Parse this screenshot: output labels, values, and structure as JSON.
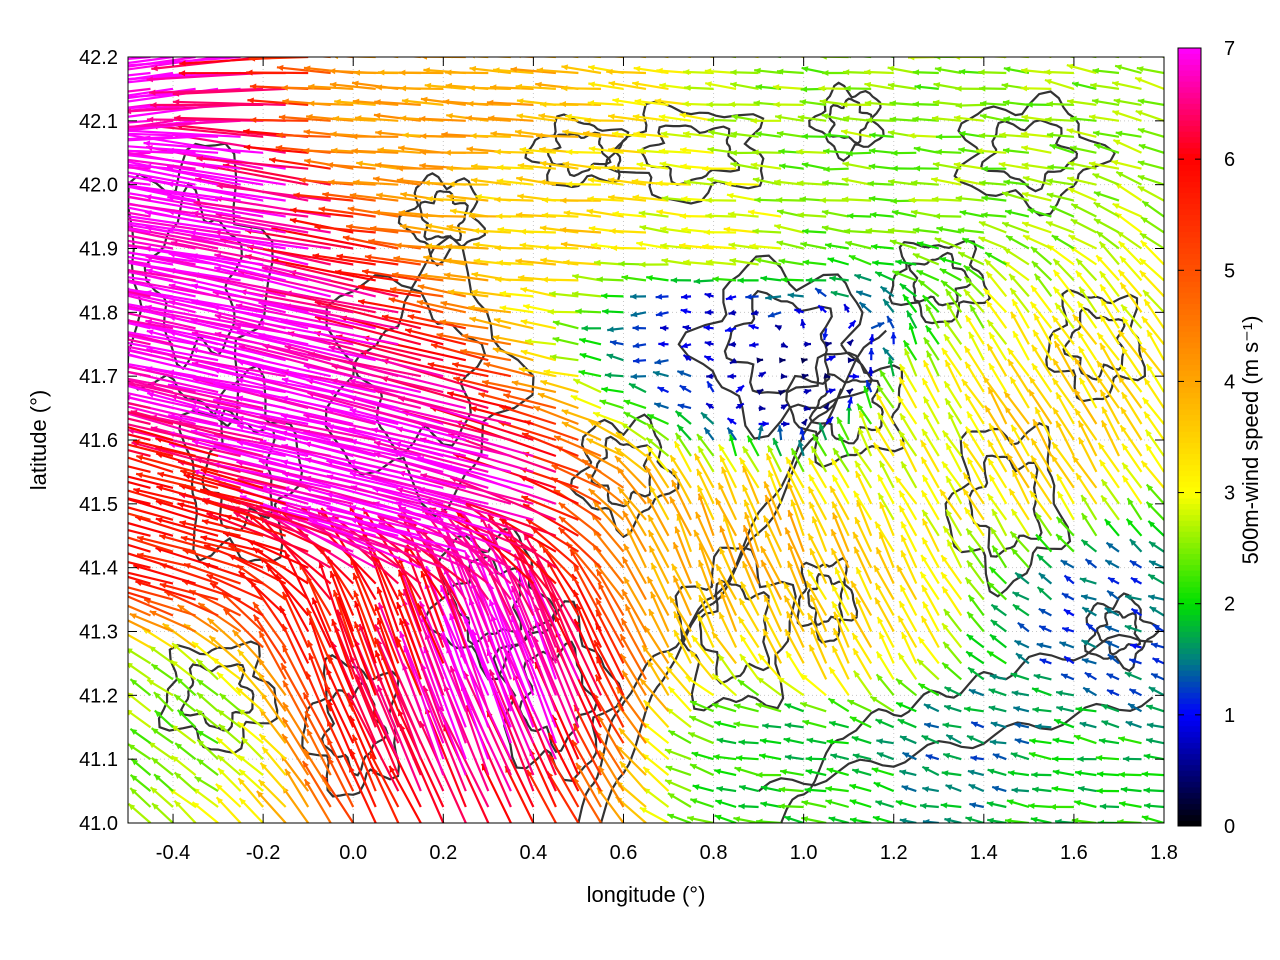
{
  "chart_data": {
    "type": "vector-field",
    "xlabel": "longitude (°)",
    "ylabel": "latitude (°)",
    "xlim": [
      -0.5,
      1.8
    ],
    "ylim": [
      41.0,
      42.2
    ],
    "x_ticks": [
      -0.4,
      -0.2,
      0.0,
      0.2,
      0.4,
      0.6,
      0.8,
      1.0,
      1.2,
      1.4,
      1.6,
      1.8
    ],
    "x_tick_labels": [
      "-0.4",
      "-0.2",
      "0.0",
      "0.2",
      "0.4",
      "0.6",
      "0.8",
      "1.0",
      "1.2",
      "1.4",
      "1.6",
      "1.8"
    ],
    "y_ticks": [
      41.0,
      41.1,
      41.2,
      41.3,
      41.4,
      41.5,
      41.6,
      41.7,
      41.8,
      41.9,
      42.0,
      42.1,
      42.2
    ],
    "y_tick_labels": [
      "41.0",
      "41.1",
      "41.2",
      "41.3",
      "41.4",
      "41.5",
      "41.6",
      "41.7",
      "41.8",
      "41.9",
      "42.0",
      "42.1",
      "42.2"
    ],
    "grid": true,
    "colorbar": {
      "label": "500m-wind speed (m s⁻¹)",
      "range": [
        0,
        7
      ],
      "ticks": [
        0,
        1,
        2,
        3,
        4,
        5,
        6,
        7
      ],
      "tick_labels": [
        "0",
        "1",
        "2",
        "3",
        "4",
        "5",
        "6",
        "7"
      ],
      "stops": [
        {
          "v": 0,
          "color": "#000000"
        },
        {
          "v": 1,
          "color": "#0000ff"
        },
        {
          "v": 1.5,
          "color": "#008080"
        },
        {
          "v": 2,
          "color": "#00e000"
        },
        {
          "v": 3,
          "color": "#ffff00"
        },
        {
          "v": 4,
          "color": "#ffa500"
        },
        {
          "v": 5,
          "color": "#ff5000"
        },
        {
          "v": 6,
          "color": "#ff0000"
        },
        {
          "v": 7,
          "color": "#ff00ff"
        }
      ]
    },
    "vectors": [
      {
        "lon": -0.45,
        "lat": 42.15,
        "u": -7.0,
        "v": -0.8,
        "speed": 7.0
      },
      {
        "lon": -0.3,
        "lat": 41.95,
        "u": -7.0,
        "v": 1.2,
        "speed": 7.0
      },
      {
        "lon": -0.2,
        "lat": 41.75,
        "u": -7.0,
        "v": 1.5,
        "speed": 7.0
      },
      {
        "lon": 0.0,
        "lat": 41.6,
        "u": -7.0,
        "v": 1.6,
        "speed": 7.0
      },
      {
        "lon": 0.2,
        "lat": 41.5,
        "u": -7.0,
        "v": 1.8,
        "speed": 7.0
      },
      {
        "lon": 0.3,
        "lat": 41.2,
        "u": -2.5,
        "v": 6.5,
        "speed": 7.0
      },
      {
        "lon": -0.35,
        "lat": 41.45,
        "u": -5.5,
        "v": 1.5,
        "speed": 5.7
      },
      {
        "lon": 0.1,
        "lat": 41.25,
        "u": -2.0,
        "v": 5.5,
        "speed": 5.8
      },
      {
        "lon": 0.2,
        "lat": 42.1,
        "u": -4.0,
        "v": 0.3,
        "speed": 4.0
      },
      {
        "lon": 0.5,
        "lat": 41.95,
        "u": -3.5,
        "v": 0.3,
        "speed": 3.5
      },
      {
        "lon": 0.8,
        "lat": 41.9,
        "u": -3.0,
        "v": 0.3,
        "speed": 3.0
      },
      {
        "lon": 1.2,
        "lat": 42.05,
        "u": -2.5,
        "v": 0.2,
        "speed": 2.5
      },
      {
        "lon": 1.0,
        "lat": 41.7,
        "u": 0.6,
        "v": 0.1,
        "speed": 0.6
      },
      {
        "lon": 0.8,
        "lat": 41.8,
        "u": -0.8,
        "v": 0.0,
        "speed": 0.8
      },
      {
        "lon": 1.3,
        "lat": 41.6,
        "u": -1.5,
        "v": 2.5,
        "speed": 3.0
      },
      {
        "lon": 1.5,
        "lat": 41.6,
        "u": -1.8,
        "v": 3.0,
        "speed": 3.5
      },
      {
        "lon": 0.9,
        "lat": 41.4,
        "u": -1.5,
        "v": 3.5,
        "speed": 3.8
      },
      {
        "lon": 1.1,
        "lat": 41.3,
        "u": -1.5,
        "v": 3.0,
        "speed": 3.4
      },
      {
        "lon": 1.0,
        "lat": 41.1,
        "u": -2.0,
        "v": 0.3,
        "speed": 2.0
      },
      {
        "lon": 1.4,
        "lat": 41.1,
        "u": -1.5,
        "v": 0.4,
        "speed": 1.5
      },
      {
        "lon": 1.6,
        "lat": 41.05,
        "u": -2.0,
        "v": 0.3,
        "speed": 2.0
      },
      {
        "lon": 1.7,
        "lat": 41.3,
        "u": -1.2,
        "v": 0.5,
        "speed": 1.3
      },
      {
        "lon": -0.4,
        "lat": 41.15,
        "u": -2.0,
        "v": 1.5,
        "speed": 2.5
      }
    ]
  }
}
